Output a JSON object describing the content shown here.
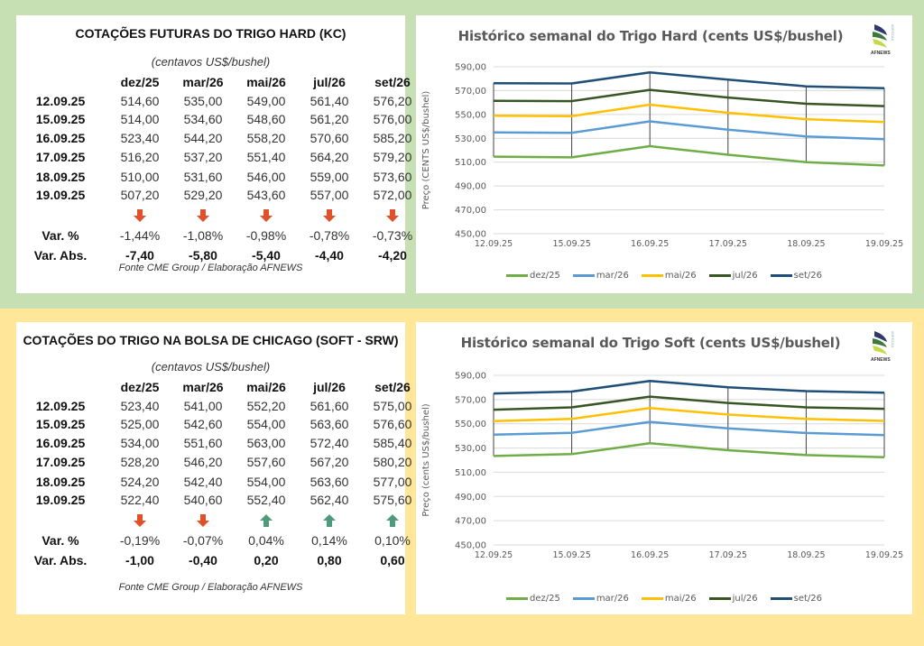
{
  "tables": [
    {
      "title": "COTAÇÕES FUTURAS DO TRIGO HARD (KC)",
      "unit": "(centavos US$/bushel)",
      "columns": [
        "dez/25",
        "mar/26",
        "mai/26",
        "jul/26",
        "set/26"
      ],
      "rows": [
        {
          "date": "12.09.25",
          "values": [
            "514,60",
            "535,00",
            "549,00",
            "561,40",
            "576,20"
          ]
        },
        {
          "date": "15.09.25",
          "values": [
            "514,00",
            "534,60",
            "548,60",
            "561,20",
            "576,00"
          ]
        },
        {
          "date": "16.09.25",
          "values": [
            "523,40",
            "544,20",
            "558,20",
            "570,60",
            "585,20"
          ]
        },
        {
          "date": "17.09.25",
          "values": [
            "516,20",
            "537,20",
            "551,40",
            "564,20",
            "579,20"
          ]
        },
        {
          "date": "18.09.25",
          "values": [
            "510,00",
            "531,60",
            "546,00",
            "559,00",
            "573,60"
          ]
        },
        {
          "date": "19.09.25",
          "values": [
            "507,20",
            "529,20",
            "543,60",
            "557,00",
            "572,00"
          ]
        }
      ],
      "directions": [
        "down",
        "down",
        "down",
        "down",
        "down"
      ],
      "var_pct_label": "Var. %",
      "var_pct": [
        "-1,44%",
        "-1,08%",
        "-0,98%",
        "-0,78%",
        "-0,73%"
      ],
      "var_abs_label": "Var. Abs.",
      "var_abs": [
        "-7,40",
        "-5,80",
        "-5,40",
        "-4,40",
        "-4,20"
      ],
      "source": "Fonte CME Group / Elaboração AFNEWS"
    },
    {
      "title": "COTAÇÕES DO TRIGO NA BOLSA DE CHICAGO (SOFT - SRW)",
      "unit": "(centavos US$/bushel)",
      "columns": [
        "dez/25",
        "mar/26",
        "mai/26",
        "jul/26",
        "set/26"
      ],
      "rows": [
        {
          "date": "12.09.25",
          "values": [
            "523,40",
            "541,00",
            "552,20",
            "561,60",
            "575,00"
          ]
        },
        {
          "date": "15.09.25",
          "values": [
            "525,00",
            "542,60",
            "554,00",
            "563,60",
            "576,60"
          ]
        },
        {
          "date": "16.09.25",
          "values": [
            "534,00",
            "551,60",
            "563,00",
            "572,40",
            "585,40"
          ]
        },
        {
          "date": "17.09.25",
          "values": [
            "528,20",
            "546,20",
            "557,60",
            "567,20",
            "580,20"
          ]
        },
        {
          "date": "18.09.25",
          "values": [
            "524,20",
            "542,40",
            "554,00",
            "563,60",
            "577,00"
          ]
        },
        {
          "date": "19.09.25",
          "values": [
            "522,40",
            "540,60",
            "552,40",
            "562,40",
            "575,60"
          ]
        }
      ],
      "directions": [
        "down",
        "down",
        "up",
        "up",
        "up"
      ],
      "var_pct_label": "Var. %",
      "var_pct": [
        "-0,19%",
        "-0,07%",
        "0,04%",
        "0,14%",
        "0,10%"
      ],
      "var_abs_label": "Var. Abs.",
      "var_abs": [
        "-1,00",
        "-0,40",
        "0,20",
        "0,80",
        "0,60"
      ],
      "source": "Fonte CME Group / Elaboração AFNEWS"
    }
  ],
  "colors": {
    "down_arrow": "#e0502a",
    "up_arrow": "#4e9a7a",
    "top_band": "#c6e0b4",
    "bottom_band": "#ffe699"
  },
  "logo": {
    "text": "AFNEWS",
    "side_text": "AGRÍCOLA"
  },
  "chart_data": [
    {
      "type": "line",
      "title": "Histórico semanal do Trigo Hard (cents US$/bushel)",
      "xlabel": "",
      "ylabel": "Preço (CENTS US$/bushel)",
      "x": [
        "12.09.25",
        "15.09.25",
        "16.09.25",
        "17.09.25",
        "18.09.25",
        "19.09.25"
      ],
      "ylim": [
        450,
        590
      ],
      "yticks": [
        "450,00",
        "470,00",
        "490,00",
        "510,00",
        "530,00",
        "550,00",
        "570,00",
        "590,00"
      ],
      "grid": true,
      "drop_lines": true,
      "legend": "bottom",
      "series": [
        {
          "name": "dez/25",
          "color": "#70ad47",
          "values": [
            514.6,
            514.0,
            523.4,
            516.2,
            510.0,
            507.2
          ]
        },
        {
          "name": "mar/26",
          "color": "#5b9bd5",
          "values": [
            535.0,
            534.6,
            544.2,
            537.2,
            531.6,
            529.2
          ]
        },
        {
          "name": "mai/26",
          "color": "#ffc000",
          "values": [
            549.0,
            548.6,
            558.2,
            551.4,
            546.0,
            543.6
          ]
        },
        {
          "name": "jul/26",
          "color": "#375623",
          "values": [
            561.4,
            561.2,
            570.6,
            564.2,
            559.0,
            557.0
          ]
        },
        {
          "name": "set/26",
          "color": "#1f4e79",
          "values": [
            576.2,
            576.0,
            585.2,
            579.2,
            573.6,
            572.0
          ]
        }
      ]
    },
    {
      "type": "line",
      "title": "Histórico semanal do Trigo Soft (cents US$/bushel)",
      "xlabel": "",
      "ylabel": "Preço (cents US$/bushel)",
      "x": [
        "12.09.25",
        "15.09.25",
        "16.09.25",
        "17.09.25",
        "18.09.25",
        "19.09.25"
      ],
      "ylim": [
        450,
        590
      ],
      "yticks": [
        "450,00",
        "470,00",
        "490,00",
        "510,00",
        "530,00",
        "550,00",
        "570,00",
        "590,00"
      ],
      "grid": true,
      "drop_lines": true,
      "legend": "bottom",
      "series": [
        {
          "name": "dez/25",
          "color": "#70ad47",
          "values": [
            523.4,
            525.0,
            534.0,
            528.2,
            524.2,
            522.4
          ]
        },
        {
          "name": "mar/26",
          "color": "#5b9bd5",
          "values": [
            541.0,
            542.6,
            551.6,
            546.2,
            542.4,
            540.6
          ]
        },
        {
          "name": "mai/26",
          "color": "#ffc000",
          "values": [
            552.2,
            554.0,
            563.0,
            557.6,
            554.0,
            552.4
          ]
        },
        {
          "name": "jul/26",
          "color": "#375623",
          "values": [
            561.6,
            563.6,
            572.4,
            567.2,
            563.6,
            562.4
          ]
        },
        {
          "name": "set/26",
          "color": "#1f4e79",
          "values": [
            575.0,
            576.6,
            585.4,
            580.2,
            577.0,
            575.6
          ]
        }
      ]
    }
  ]
}
